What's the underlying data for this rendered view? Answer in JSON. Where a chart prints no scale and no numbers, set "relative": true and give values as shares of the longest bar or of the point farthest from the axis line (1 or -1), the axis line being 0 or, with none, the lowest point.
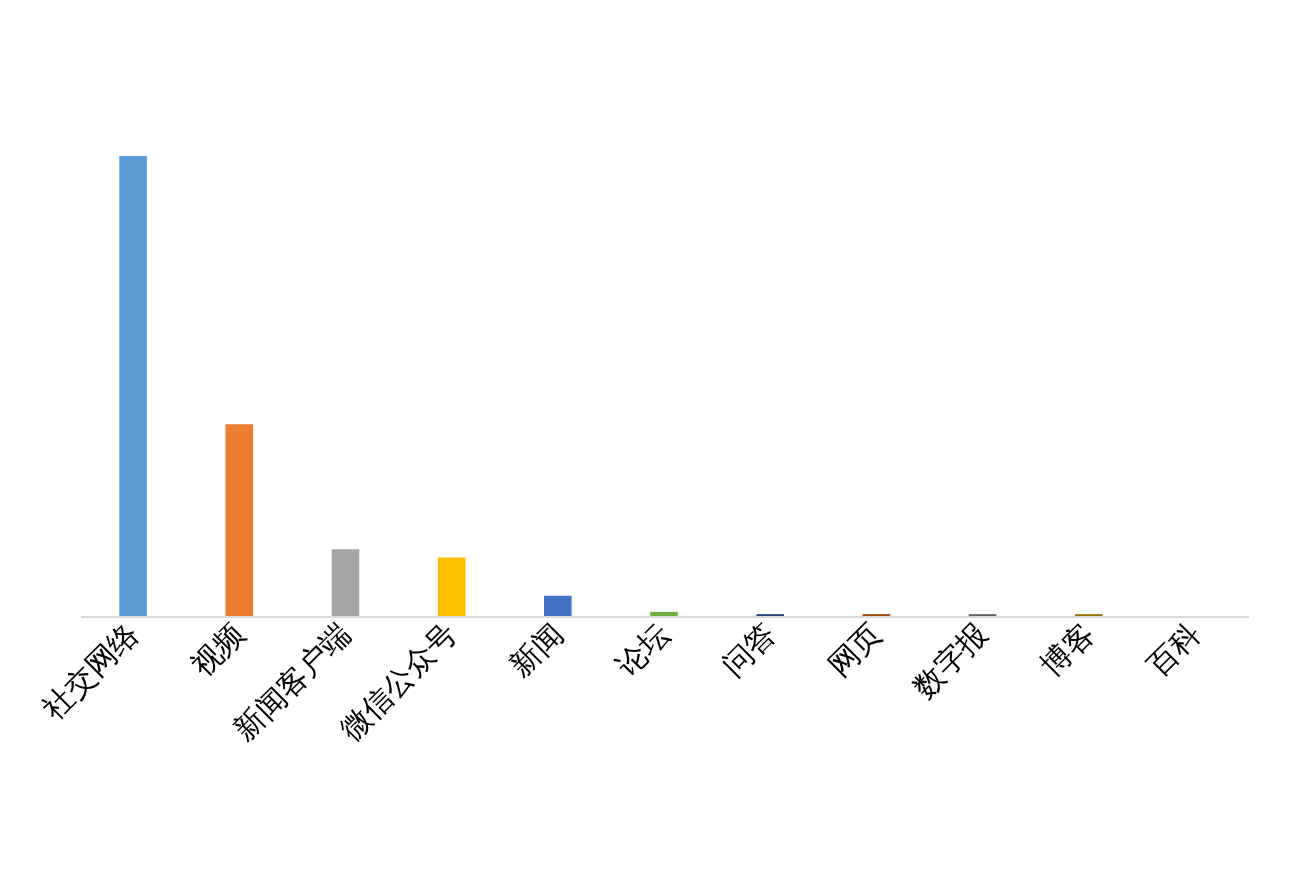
{
  "chart_data": {
    "type": "bar",
    "relative": true,
    "categories": [
      "社交网络",
      "视频",
      "新闻客户端",
      "微信公众号",
      "新闻",
      "论坛",
      "问答",
      "网页",
      "数字报",
      "博客",
      "百科"
    ],
    "values": [
      1,
      0.417,
      0.145,
      0.127,
      0.044,
      0.009,
      0.004,
      0.004,
      0.004,
      0.004,
      0
    ],
    "colors": [
      "#5b9bd5",
      "#ed7d31",
      "#a5a5a5",
      "#ffc000",
      "#4472c4",
      "#70ad47",
      "#264478",
      "#9e480e",
      "#636363",
      "#997300",
      "#255e91"
    ]
  }
}
